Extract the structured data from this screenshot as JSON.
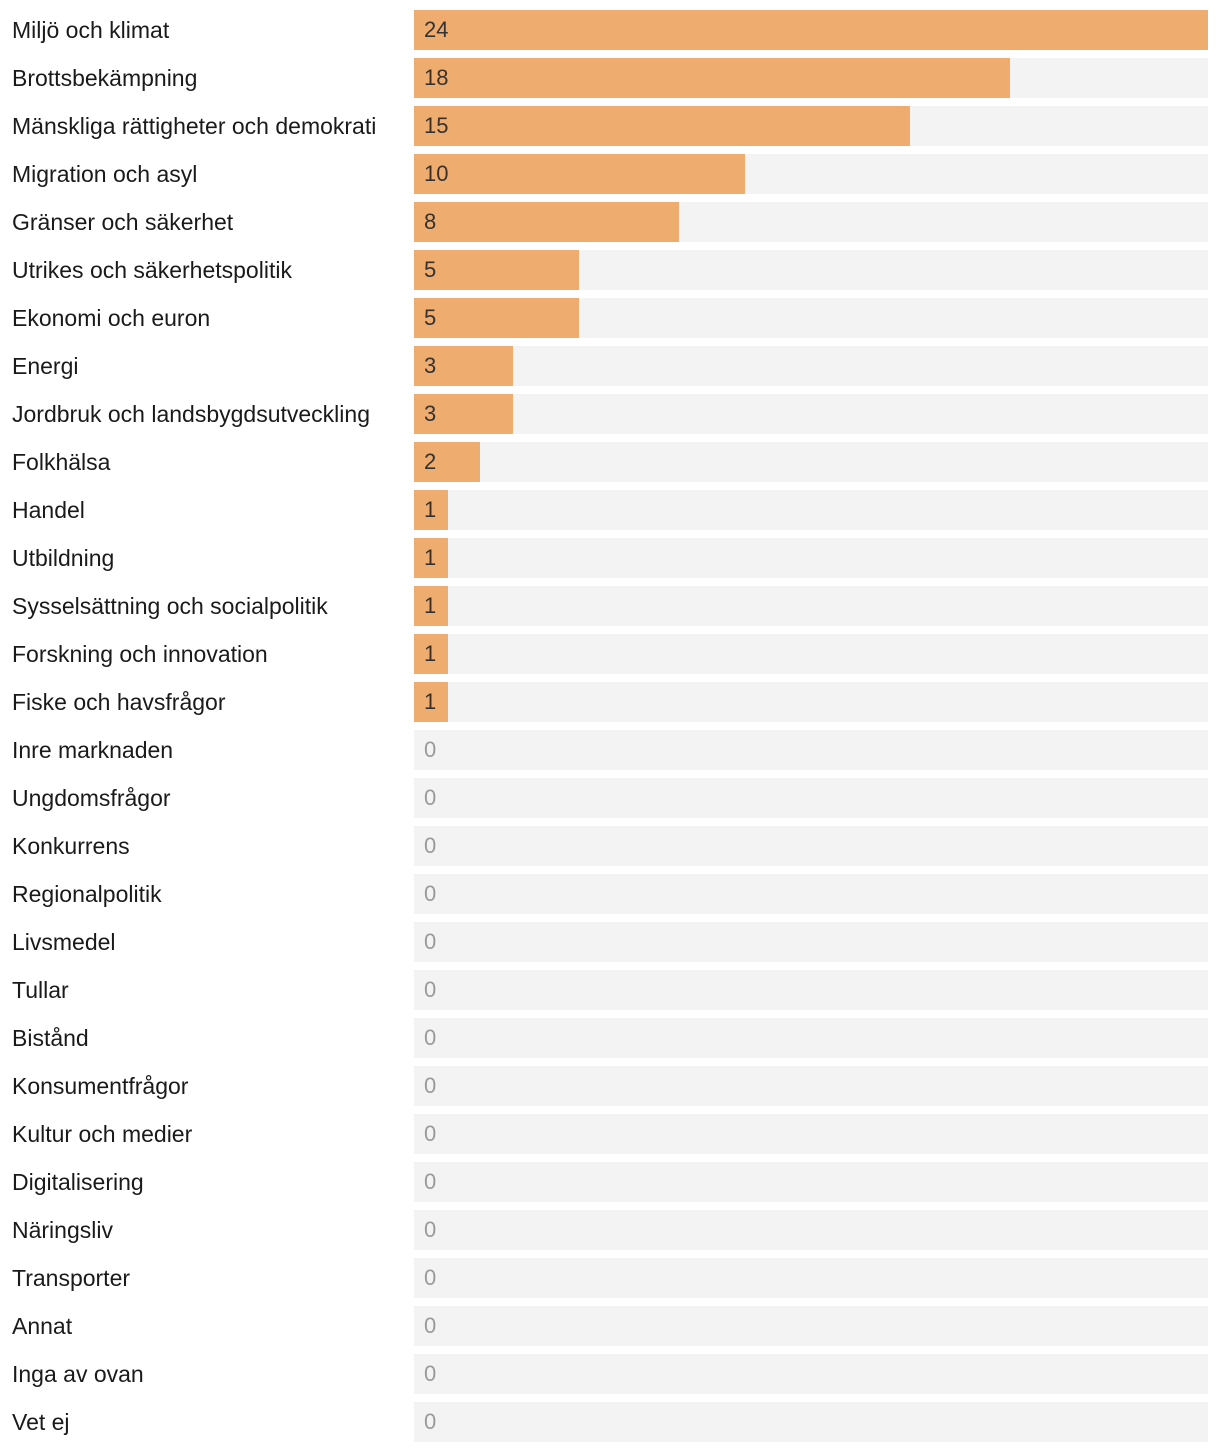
{
  "colors": {
    "bar": "#efac6f",
    "track": "#f3f3f3",
    "label": "#1a1a1a",
    "value": "#333333",
    "zero_value": "#9a9a9a"
  },
  "chart_data": {
    "type": "bar",
    "orientation": "horizontal",
    "title": "",
    "xlabel": "",
    "ylabel": "",
    "xlim": [
      0,
      24
    ],
    "grid": false,
    "categories": [
      "Miljö och klimat",
      "Brottsbekämpning",
      "Mänskliga rättigheter och demokrati",
      "Migration och asyl",
      "Gränser och säkerhet",
      "Utrikes och säkerhetspolitik",
      "Ekonomi och euron",
      "Energi",
      "Jordbruk och landsbygdsutveckling",
      "Folkhälsa",
      "Handel",
      "Utbildning",
      "Sysselsättning och socialpolitik",
      "Forskning och innovation",
      "Fiske och havsfrågor",
      "Inre marknaden",
      "Ungdomsfrågor",
      "Konkurrens",
      "Regionalpolitik",
      "Livsmedel",
      "Tullar",
      "Bistånd",
      "Konsumentfrågor",
      "Kultur och medier",
      "Digitalisering",
      "Näringsliv",
      "Transporter",
      "Annat",
      "Inga av ovan",
      "Vet ej"
    ],
    "values": [
      24,
      18,
      15,
      10,
      8,
      5,
      5,
      3,
      3,
      2,
      1,
      1,
      1,
      1,
      1,
      0,
      0,
      0,
      0,
      0,
      0,
      0,
      0,
      0,
      0,
      0,
      0,
      0,
      0,
      0
    ]
  }
}
